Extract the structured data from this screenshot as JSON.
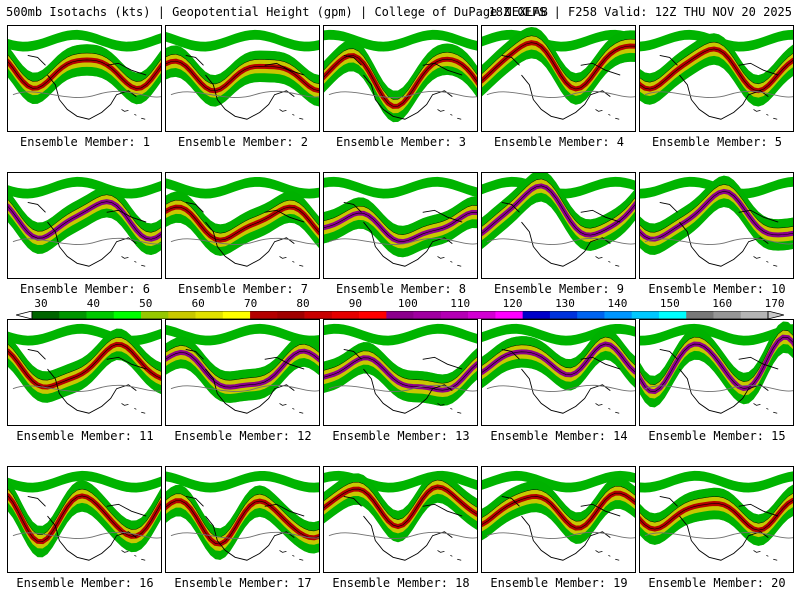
{
  "header": {
    "left_title": "500mb Isotachs (kts) | Geopotential Height (gpm) | College of DuPage NEXLAB",
    "right_title": "18Z GEFS | F258 Valid: 12Z THU NOV 20 2025"
  },
  "colorbar": {
    "ticks": [
      "30",
      "40",
      "50",
      "60",
      "70",
      "80",
      "90",
      "100",
      "110",
      "120",
      "130",
      "140",
      "150",
      "160",
      "170"
    ],
    "colors": [
      "#006400",
      "#009600",
      "#00c800",
      "#00ff00",
      "#96c800",
      "#c8c800",
      "#e1e100",
      "#ffff00",
      "#b40000",
      "#a00000",
      "#c80000",
      "#e60000",
      "#ff0000",
      "#8c008c",
      "#a000a0",
      "#b400b4",
      "#d200d2",
      "#ff00ff",
      "#0000c8",
      "#0032dc",
      "#0064f0",
      "#0096ff",
      "#00c8ff",
      "#00ffff",
      "#787878",
      "#969696",
      "#b4b4b4"
    ]
  },
  "panels": [
    {
      "label": "Ensemble Member: 1"
    },
    {
      "label": "Ensemble Member: 2"
    },
    {
      "label": "Ensemble Member: 3"
    },
    {
      "label": "Ensemble Member: 4"
    },
    {
      "label": "Ensemble Member: 5"
    },
    {
      "label": "Ensemble Member: 6"
    },
    {
      "label": "Ensemble Member: 7"
    },
    {
      "label": "Ensemble Member: 8"
    },
    {
      "label": "Ensemble Member: 9"
    },
    {
      "label": "Ensemble Member: 10"
    },
    {
      "label": "Ensemble Member: 11"
    },
    {
      "label": "Ensemble Member: 12"
    },
    {
      "label": "Ensemble Member: 13"
    },
    {
      "label": "Ensemble Member: 14"
    },
    {
      "label": "Ensemble Member: 15"
    },
    {
      "label": "Ensemble Member: 16"
    },
    {
      "label": "Ensemble Member: 17"
    },
    {
      "label": "Ensemble Member: 18"
    },
    {
      "label": "Ensemble Member: 19"
    },
    {
      "label": "Ensemble Member: 20"
    }
  ]
}
